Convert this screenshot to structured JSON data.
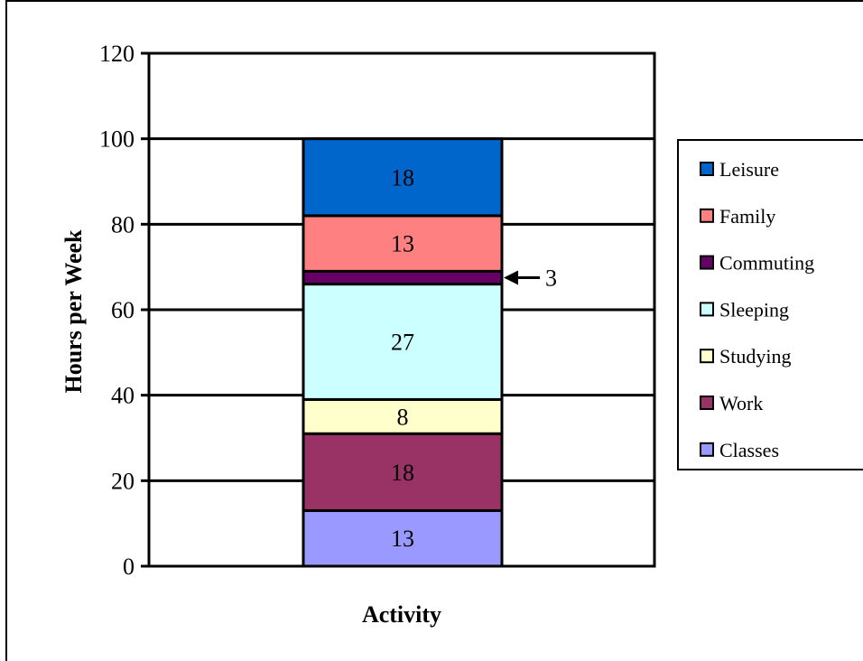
{
  "chart_data": {
    "type": "bar",
    "stacked": true,
    "xlabel": "Activity",
    "ylabel": "Hours per Week",
    "ylim": [
      0,
      120
    ],
    "yticks": [
      "0",
      "20",
      "40",
      "60",
      "80",
      "100",
      "120"
    ],
    "grid": true,
    "legend_position": "right",
    "series": [
      {
        "name": "Classes",
        "value": 13,
        "label": "13",
        "color": "#9999ff"
      },
      {
        "name": "Work",
        "value": 18,
        "label": "18",
        "color": "#993366"
      },
      {
        "name": "Studying",
        "value": 8,
        "label": "8",
        "color": "#ffffcc"
      },
      {
        "name": "Sleeping",
        "value": 27,
        "label": "27",
        "color": "#ccffff"
      },
      {
        "name": "Commuting",
        "value": 3,
        "label": "3",
        "color": "#660066"
      },
      {
        "name": "Family",
        "value": 13,
        "label": "13",
        "color": "#ff8080"
      },
      {
        "name": "Leisure",
        "value": 18,
        "label": "18",
        "color": "#0066cc"
      }
    ],
    "legend_order": [
      "Leisure",
      "Family",
      "Commuting",
      "Sleeping",
      "Studying",
      "Work",
      "Classes"
    ],
    "annotation": {
      "series": "Commuting",
      "text": "3",
      "arrow": true
    }
  }
}
